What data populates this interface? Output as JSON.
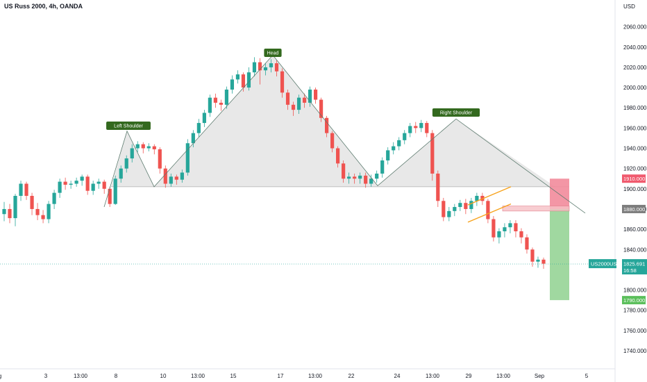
{
  "header": {
    "title": "US Russ 2000, 4h, OANDA"
  },
  "chart_data": {
    "type": "candlestick",
    "title": "US Russ 2000, 4h, OANDA",
    "currency": "USD",
    "ylim": [
      1725,
      2085
    ],
    "y_ticks": [
      1740,
      1760,
      1780,
      1800,
      1820,
      1840,
      1860,
      1880,
      1900,
      1920,
      1940,
      1960,
      1980,
      2000,
      2020,
      2040,
      2060
    ],
    "x_ticks": [
      "g",
      "3",
      "13:00",
      "8",
      "10",
      "13:00",
      "15",
      "17",
      "13:00",
      "22",
      "24",
      "13:00",
      "29",
      "13:00",
      "Sep",
      "5"
    ],
    "patterns": [
      {
        "label": "Left Shoulder",
        "value": 1957
      },
      {
        "label": "Head",
        "value": 2032
      },
      {
        "label": "Right Shoulder",
        "value": 1969
      }
    ],
    "neckline": 1902,
    "levels": {
      "stop_loss": "1910.000",
      "entry": "1880.000",
      "target": "1790.000"
    },
    "last_price": {
      "symbol": "US2000USD",
      "value": "1825.691",
      "countdown": "16:58"
    },
    "colors": {
      "up": "#26a69a",
      "down": "#ef5350",
      "pattern_line": "#5d7b6f",
      "channel": "#f7a21b",
      "label_bg": "#33691e"
    }
  }
}
